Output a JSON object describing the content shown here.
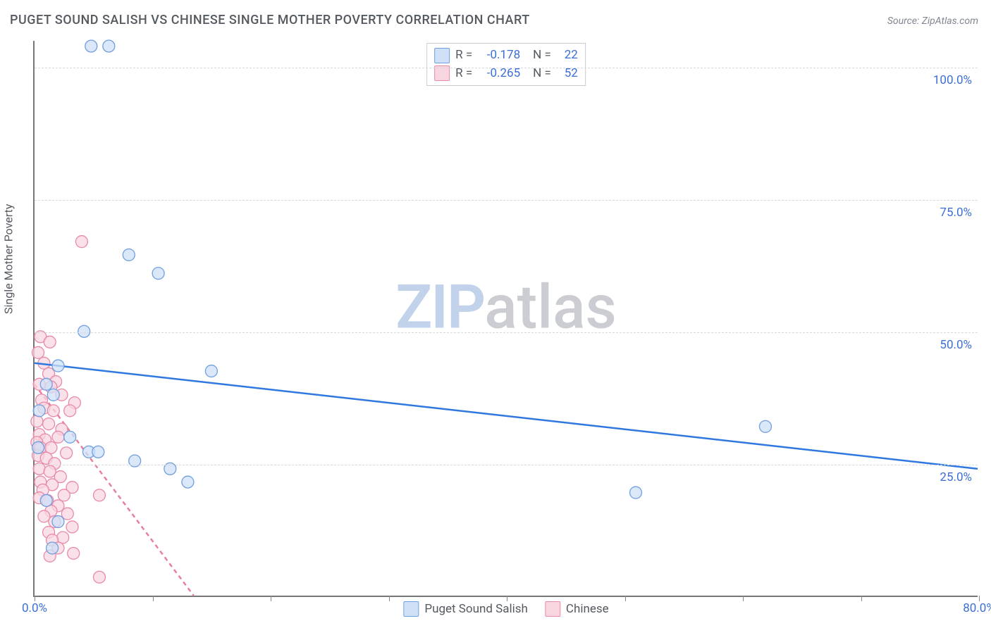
{
  "title": "PUGET SOUND SALISH VS CHINESE SINGLE MOTHER POVERTY CORRELATION CHART",
  "source": "Source: ZipAtlas.com",
  "ylabel": "Single Mother Poverty",
  "watermark_a": "ZIP",
  "watermark_b": "atlas",
  "chart": {
    "type": "scatter",
    "xlim": [
      0,
      80
    ],
    "ylim": [
      0,
      105
    ],
    "xticks": [
      0,
      10,
      20,
      30,
      40,
      50,
      60,
      70,
      80
    ],
    "xtick_labels": {
      "0": "0.0%",
      "80": "80.0%"
    },
    "yticks": [
      25,
      50,
      75,
      100
    ],
    "ytick_labels": {
      "25": "25.0%",
      "50": "50.0%",
      "75": "75.0%",
      "100": "100.0%"
    },
    "background_color": "#ffffff",
    "grid_color": "#d6d9de",
    "axis_color": "#777777",
    "marker_radius": 8.5,
    "marker_stroke_width": 1.3,
    "trend_stroke_width": 2.5,
    "series": [
      {
        "name": "Puget Sound Salish",
        "color_fill": "#cfe0f7",
        "color_stroke": "#6f9fe0",
        "trend_color": "#2f78e0",
        "trend_dash": "",
        "R": "-0.178",
        "N": "22",
        "trend": {
          "x1": 0,
          "y1": 44,
          "x2": 80,
          "y2": 24
        },
        "points": [
          [
            4.8,
            104
          ],
          [
            6.3,
            104
          ],
          [
            8.0,
            64.5
          ],
          [
            10.5,
            61
          ],
          [
            4.2,
            50
          ],
          [
            2.0,
            43.5
          ],
          [
            15.0,
            42.5
          ],
          [
            1.0,
            40
          ],
          [
            1.6,
            38
          ],
          [
            0.4,
            35
          ],
          [
            3.0,
            30
          ],
          [
            62.0,
            32
          ],
          [
            0.3,
            28
          ],
          [
            4.6,
            27.2
          ],
          [
            5.4,
            27.2
          ],
          [
            8.5,
            25.5
          ],
          [
            11.5,
            24
          ],
          [
            13.0,
            21.5
          ],
          [
            51.0,
            19.5
          ],
          [
            1.0,
            18
          ],
          [
            2.0,
            14
          ],
          [
            1.5,
            9
          ]
        ]
      },
      {
        "name": "Chinese",
        "color_fill": "#f8d6e0",
        "color_stroke": "#e88aa8",
        "trend_color": "#e97fa0",
        "trend_dash": "6 5",
        "R": "-0.265",
        "N": "52",
        "trend": {
          "x1": 0,
          "y1": 40,
          "x2": 13.5,
          "y2": 0
        },
        "points": [
          [
            4.0,
            67
          ],
          [
            0.5,
            49
          ],
          [
            1.3,
            48
          ],
          [
            0.3,
            46
          ],
          [
            0.8,
            44
          ],
          [
            1.2,
            42
          ],
          [
            1.8,
            40.5
          ],
          [
            0.4,
            40
          ],
          [
            1.4,
            39.5
          ],
          [
            2.3,
            38
          ],
          [
            0.6,
            37
          ],
          [
            3.4,
            36.5
          ],
          [
            0.8,
            35.5
          ],
          [
            1.6,
            35
          ],
          [
            3.0,
            35
          ],
          [
            0.2,
            33
          ],
          [
            1.2,
            32.5
          ],
          [
            2.3,
            31.5
          ],
          [
            0.4,
            30.5
          ],
          [
            2.0,
            30
          ],
          [
            0.9,
            29.5
          ],
          [
            0.2,
            29
          ],
          [
            0.5,
            28
          ],
          [
            1.4,
            28
          ],
          [
            2.7,
            27
          ],
          [
            0.3,
            26.5
          ],
          [
            1.0,
            26
          ],
          [
            1.7,
            25
          ],
          [
            0.4,
            24
          ],
          [
            1.3,
            23.5
          ],
          [
            2.2,
            22.5
          ],
          [
            0.5,
            21.5
          ],
          [
            1.5,
            21
          ],
          [
            3.2,
            20.5
          ],
          [
            0.7,
            20
          ],
          [
            2.5,
            19
          ],
          [
            5.5,
            19
          ],
          [
            0.4,
            18.5
          ],
          [
            1.1,
            18
          ],
          [
            2.0,
            17
          ],
          [
            1.4,
            16
          ],
          [
            2.8,
            15.5
          ],
          [
            0.8,
            15
          ],
          [
            1.7,
            14
          ],
          [
            3.2,
            13
          ],
          [
            1.2,
            12
          ],
          [
            2.4,
            11
          ],
          [
            1.5,
            10.5
          ],
          [
            2.0,
            9
          ],
          [
            3.3,
            8
          ],
          [
            1.3,
            7.5
          ],
          [
            5.5,
            3.5
          ]
        ]
      }
    ],
    "legend_bottom": [
      {
        "label": "Puget Sound Salish",
        "fill": "#cfe0f7",
        "stroke": "#6f9fe0"
      },
      {
        "label": "Chinese",
        "fill": "#f8d6e0",
        "stroke": "#e88aa8"
      }
    ]
  },
  "legend_top_labels": {
    "R": "R =",
    "N": "N ="
  }
}
